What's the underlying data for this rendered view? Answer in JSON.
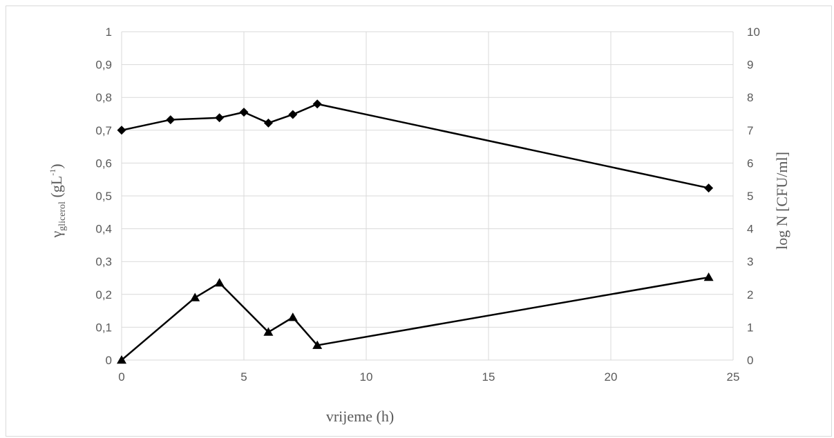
{
  "chart_data": {
    "type": "line",
    "title": "",
    "xlabel": "vrijeme (h)",
    "ylabel_left": {
      "main": "γ",
      "sub": "glicerol",
      "tail": " (gL",
      "sup": "-1",
      "close": ")"
    },
    "ylabel_right": "log N [CFU/ml]",
    "xlim": [
      0,
      25
    ],
    "ylim_left": [
      0,
      1
    ],
    "ylim_right": [
      0,
      10
    ],
    "x_ticks": [
      "0",
      "5",
      "10",
      "15",
      "20",
      "25"
    ],
    "y_left_ticks": [
      "0",
      "0,1",
      "0,2",
      "0,3",
      "0,4",
      "0,5",
      "0,6",
      "0,7",
      "0,8",
      "0,9",
      "1"
    ],
    "y_right_ticks": [
      "0",
      "1",
      "2",
      "3",
      "4",
      "5",
      "6",
      "7",
      "8",
      "9",
      "10"
    ],
    "grid": true,
    "line_color": "#000000",
    "grid_color": "#d9d9d9",
    "series": [
      {
        "axis": "right",
        "marker": "diamond",
        "x": [
          0,
          2,
          4,
          5,
          6,
          7,
          8,
          24
        ],
        "y": [
          7.0,
          7.32,
          7.38,
          7.55,
          7.22,
          7.48,
          7.8,
          5.24
        ]
      },
      {
        "axis": "left",
        "marker": "triangle",
        "x": [
          0,
          3,
          4,
          6,
          7,
          8,
          24
        ],
        "y": [
          0.0,
          0.19,
          0.235,
          0.085,
          0.13,
          0.045,
          0.252
        ]
      }
    ]
  }
}
